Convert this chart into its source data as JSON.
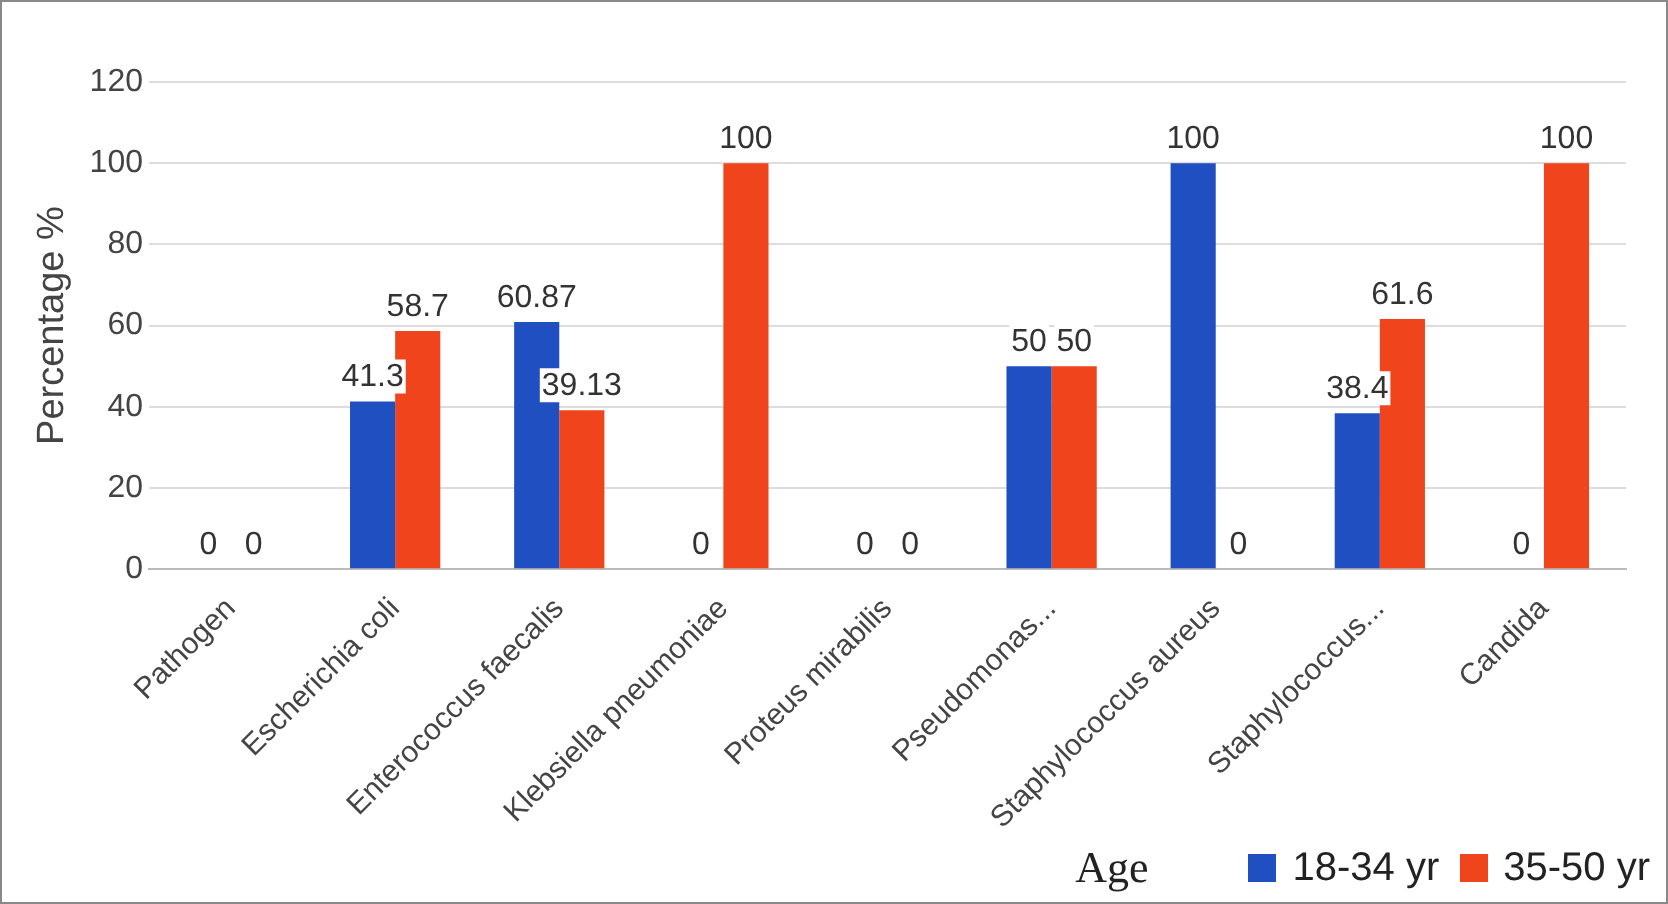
{
  "chart_data": {
    "type": "bar",
    "ylabel": "Percentage %",
    "legend_title": "Age",
    "categories": [
      "Pathogen",
      "Escherichia coli",
      "Enterococcus faecalis",
      "Klebsiella pneumoniae",
      "Proteus mirabilis",
      "Pseudomonas...",
      "Staphylococcus aureus",
      "Staphylococcus...",
      "Candida"
    ],
    "series": [
      {
        "name": "18-34 yr",
        "color": "#1f4fc0",
        "values": [
          0,
          41.3,
          60.87,
          0,
          0,
          50,
          100,
          38.4,
          0
        ]
      },
      {
        "name": "35-50 yr",
        "color": "#f0441c",
        "values": [
          0,
          58.7,
          39.13,
          100,
          0,
          50,
          0,
          61.6,
          100
        ]
      }
    ],
    "ylim": [
      0,
      120
    ],
    "yticks": [
      0,
      20,
      40,
      60,
      80,
      100,
      120
    ],
    "grid": "y",
    "legend": "bottom right",
    "data_labels": true
  }
}
